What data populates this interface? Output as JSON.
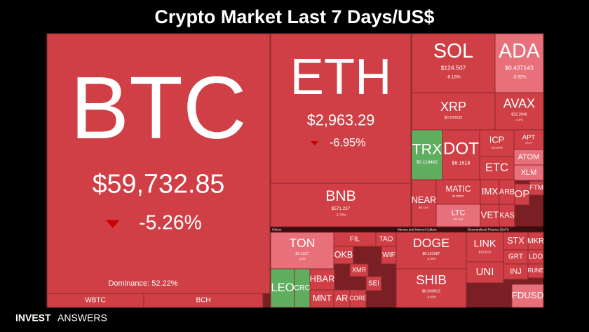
{
  "chart_data": {
    "type": "treemap",
    "title": "Crypto Market Last 7 Days/US$",
    "annotation": "Dominance: 52.22%",
    "groups": [
      "Others",
      "Memes and Internet Culture",
      "Decentralized Finance (DeFi)"
    ],
    "categories": [
      "BTC",
      "WBTC",
      "BCH",
      "ETH",
      "BNB",
      "SOL",
      "ADA",
      "XRP",
      "AVAX",
      "TRX",
      "DOT",
      "ICP",
      "APT",
      "ATOM",
      "ETC",
      "XLM",
      "NEAR",
      "MATIC",
      "LTC",
      "IMX",
      "ARB",
      "OP",
      "VET",
      "KAS",
      "FTM",
      "TON",
      "LEO",
      "CRO",
      "HBAR",
      "MNT",
      "FIL",
      "TAO",
      "OKB",
      "XMR",
      "SEI",
      "WIF",
      "AR",
      "CORE",
      "DOGE",
      "SHIB",
      "LINK",
      "STX",
      "MKR",
      "UNI",
      "GRT",
      "LDO",
      "INJ",
      "RUNE",
      "FDUSD"
    ],
    "prices": [
      59732.85,
      null,
      null,
      2963.29,
      571.237,
      124.507,
      0.437143,
      0.500525,
      32.3946,
      0.118482,
      6.1618,
      12.6946,
      8.209,
      null,
      null,
      null,
      6.1115,
      0.658857,
      79.2194,
      null,
      null,
      null,
      null,
      null,
      null,
      5.1227,
      null,
      null,
      null,
      null,
      null,
      null,
      null,
      null,
      null,
      null,
      null,
      null,
      0.132587,
      2.2e-05,
      13.0211,
      null,
      null,
      null,
      null,
      null,
      null,
      null,
      null
    ],
    "price_labels": [
      "$59,732.85",
      null,
      null,
      "$2,963.29",
      "$571.237",
      "$124.507",
      "$0.437143",
      "$0.500525",
      "$32.3946",
      "$0.118482",
      "$6.1618",
      "$12.6946",
      "$8.209",
      null,
      null,
      null,
      "$6.1115",
      "$0.658857",
      "$79.2194",
      null,
      null,
      null,
      null,
      null,
      null,
      "$5.1227",
      null,
      null,
      null,
      null,
      null,
      null,
      null,
      null,
      null,
      null,
      null,
      null,
      "$0.132587",
      "$0.000022",
      "$13.0211",
      null,
      null,
      null,
      null,
      null,
      null,
      null,
      null
    ],
    "changes": [
      -5.26,
      null,
      null,
      -6.95,
      -3.73,
      -8.13,
      -3.92,
      null,
      -6.9,
      null,
      null,
      null,
      null,
      null,
      null,
      null,
      null,
      null,
      null,
      null,
      null,
      null,
      null,
      null,
      null,
      -4.6,
      null,
      null,
      null,
      null,
      null,
      null,
      null,
      null,
      null,
      null,
      null,
      null,
      -4.39,
      -6.4,
      null,
      null,
      null,
      null,
      null,
      null,
      null,
      null,
      null
    ],
    "change_labels": [
      "-5.26%",
      null,
      null,
      "-6.95%",
      "-3.73%",
      "-8.13%",
      "-3.92%",
      null,
      "-6.9%",
      null,
      null,
      null,
      null,
      null,
      null,
      null,
      null,
      null,
      null,
      null,
      null,
      null,
      null,
      null,
      null,
      "-4.6%",
      null,
      null,
      null,
      null,
      null,
      null,
      null,
      null,
      null,
      null,
      null,
      null,
      "-4.39%",
      "-6.40%",
      null,
      null,
      null,
      null,
      null,
      null,
      null,
      null,
      null
    ],
    "colors": {
      "down": "#cf3f45",
      "light": "#e8707a",
      "up": "#5fae5e"
    },
    "tile_colors": [
      "down",
      "down",
      "down",
      "down",
      "down",
      "down",
      "light",
      "down",
      "down",
      "up",
      "down",
      "down",
      "down",
      "light",
      "down",
      "light",
      "down",
      "down",
      "light",
      "down",
      "down",
      "down",
      "down",
      "down",
      "down",
      "light",
      "up",
      "up",
      "down",
      "down",
      "down",
      "down",
      "down",
      "down",
      "down",
      "down",
      "down",
      "down",
      "down",
      "down",
      "down",
      "down",
      "down",
      "down",
      "down",
      "down",
      "down",
      "down",
      "light"
    ]
  },
  "brand": {
    "bold": "INVEST",
    "light": "ANSWERS"
  }
}
